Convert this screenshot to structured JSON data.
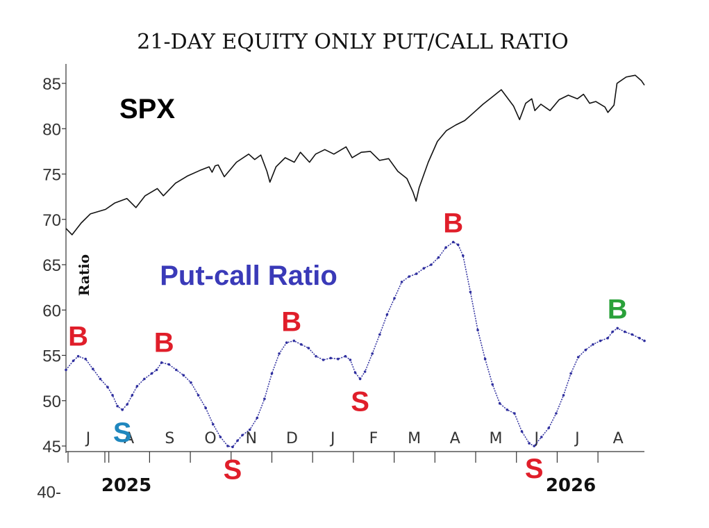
{
  "chart_data": {
    "type": "line",
    "title": "21-DAY EQUITY ONLY PUT/CALL RATIO",
    "ylabel": "Ratio",
    "y_ticks": [
      "85",
      "80",
      "75",
      "70",
      "65",
      "60",
      "55",
      "50",
      "45",
      "40-"
    ],
    "ylim": [
      40,
      87
    ],
    "years": [
      "2025",
      "2026"
    ],
    "months": [
      "J",
      "A",
      "S",
      "O",
      "N",
      "D",
      "J",
      "F",
      "M",
      "A",
      "M",
      "J",
      "J",
      "A"
    ],
    "colors": {
      "spx": "#111111",
      "ratio": "#2e2e9e",
      "red": "#e01e2a",
      "teal": "#1f87be",
      "green": "#2aa13a"
    },
    "series": [
      {
        "name": "SPX",
        "label_color": "#000000",
        "points": [
          [
            0,
            69.0
          ],
          [
            0.2,
            68.3
          ],
          [
            0.5,
            69.6
          ],
          [
            0.8,
            70.6
          ],
          [
            1.3,
            71.1
          ],
          [
            1.6,
            71.8
          ],
          [
            2.0,
            72.3
          ],
          [
            2.3,
            71.3
          ],
          [
            2.6,
            72.6
          ],
          [
            3.0,
            73.4
          ],
          [
            3.2,
            72.6
          ],
          [
            3.6,
            74.0
          ],
          [
            4.0,
            74.8
          ],
          [
            4.4,
            75.4
          ],
          [
            4.7,
            75.8
          ],
          [
            4.8,
            75.2
          ],
          [
            4.9,
            75.9
          ],
          [
            5.0,
            76.0
          ],
          [
            5.2,
            74.7
          ],
          [
            5.6,
            76.3
          ],
          [
            6.0,
            77.2
          ],
          [
            6.2,
            76.6
          ],
          [
            6.4,
            77.1
          ],
          [
            6.6,
            75.3
          ],
          [
            6.7,
            74.1
          ],
          [
            6.9,
            75.8
          ],
          [
            7.2,
            76.8
          ],
          [
            7.5,
            76.3
          ],
          [
            7.7,
            77.4
          ],
          [
            8.0,
            76.3
          ],
          [
            8.2,
            77.2
          ],
          [
            8.5,
            77.7
          ],
          [
            8.8,
            77.2
          ],
          [
            9.2,
            78.0
          ],
          [
            9.4,
            76.8
          ],
          [
            9.7,
            77.4
          ],
          [
            10.0,
            77.5
          ],
          [
            10.3,
            76.5
          ],
          [
            10.6,
            76.7
          ],
          [
            10.9,
            75.3
          ],
          [
            11.2,
            74.5
          ],
          [
            11.4,
            73.0
          ],
          [
            11.5,
            72.0
          ],
          [
            11.6,
            73.5
          ],
          [
            11.9,
            76.3
          ],
          [
            12.2,
            78.6
          ],
          [
            12.5,
            79.8
          ],
          [
            12.8,
            80.4
          ],
          [
            13.1,
            80.9
          ],
          [
            13.4,
            81.8
          ],
          [
            13.7,
            82.7
          ],
          [
            14.0,
            83.5
          ],
          [
            14.3,
            84.3
          ],
          [
            14.5,
            83.4
          ],
          [
            14.7,
            82.5
          ],
          [
            14.9,
            81.0
          ],
          [
            15.1,
            82.8
          ],
          [
            15.3,
            83.3
          ],
          [
            15.4,
            82.0
          ],
          [
            15.6,
            82.7
          ],
          [
            15.9,
            82.0
          ],
          [
            16.2,
            83.2
          ],
          [
            16.5,
            83.7
          ],
          [
            16.8,
            83.3
          ],
          [
            17.0,
            83.8
          ],
          [
            17.2,
            82.8
          ],
          [
            17.4,
            83.0
          ],
          [
            17.7,
            82.4
          ],
          [
            17.8,
            81.8
          ],
          [
            18.0,
            82.6
          ],
          [
            18.1,
            85.0
          ],
          [
            18.4,
            85.7
          ],
          [
            18.7,
            85.9
          ],
          [
            18.9,
            85.3
          ],
          [
            19.0,
            84.8
          ]
        ]
      },
      {
        "name": "Put-call Ratio",
        "label_color": "#3a3ab8",
        "points": [
          [
            0,
            53.4
          ],
          [
            0.3,
            54.4
          ],
          [
            0.5,
            54.9
          ],
          [
            0.8,
            54.6
          ],
          [
            1.1,
            53.5
          ],
          [
            1.4,
            52.4
          ],
          [
            1.7,
            51.5
          ],
          [
            1.9,
            50.6
          ],
          [
            2.1,
            49.4
          ],
          [
            2.3,
            49.0
          ],
          [
            2.5,
            49.6
          ],
          [
            2.7,
            50.6
          ],
          [
            2.9,
            51.6
          ],
          [
            3.2,
            52.4
          ],
          [
            3.5,
            53.0
          ],
          [
            3.7,
            53.4
          ],
          [
            3.9,
            54.2
          ],
          [
            4.2,
            54.0
          ],
          [
            4.5,
            53.4
          ],
          [
            4.8,
            52.8
          ],
          [
            5.1,
            52.0
          ],
          [
            5.4,
            50.6
          ],
          [
            5.7,
            49.2
          ],
          [
            6.0,
            47.4
          ],
          [
            6.3,
            46.0
          ],
          [
            6.6,
            45.0
          ],
          [
            6.8,
            44.9
          ],
          [
            7.0,
            45.6
          ],
          [
            7.2,
            46.2
          ],
          [
            7.5,
            46.8
          ],
          [
            7.8,
            48.1
          ],
          [
            8.1,
            50.2
          ],
          [
            8.4,
            53.0
          ],
          [
            8.7,
            55.2
          ],
          [
            9.0,
            56.4
          ],
          [
            9.3,
            56.6
          ],
          [
            9.6,
            56.2
          ],
          [
            9.9,
            55.8
          ],
          [
            10.2,
            54.9
          ],
          [
            10.5,
            54.5
          ],
          [
            10.8,
            54.7
          ],
          [
            11.1,
            54.6
          ],
          [
            11.4,
            54.9
          ],
          [
            11.6,
            54.5
          ],
          [
            11.8,
            53.1
          ],
          [
            12.0,
            52.4
          ],
          [
            12.2,
            53.2
          ],
          [
            12.5,
            55.2
          ],
          [
            12.8,
            57.3
          ],
          [
            13.1,
            59.5
          ],
          [
            13.4,
            61.3
          ],
          [
            13.7,
            63.1
          ],
          [
            14.0,
            63.7
          ],
          [
            14.3,
            64.0
          ],
          [
            14.6,
            64.6
          ],
          [
            14.9,
            65.0
          ],
          [
            15.2,
            65.8
          ],
          [
            15.5,
            66.9
          ],
          [
            15.8,
            67.5
          ],
          [
            16.0,
            67.2
          ],
          [
            16.2,
            66.0
          ],
          [
            16.5,
            62.0
          ],
          [
            16.8,
            57.8
          ],
          [
            17.1,
            54.6
          ],
          [
            17.4,
            51.8
          ],
          [
            17.7,
            49.7
          ],
          [
            18.0,
            49.0
          ],
          [
            18.3,
            48.6
          ],
          [
            18.6,
            46.6
          ],
          [
            18.9,
            45.3
          ],
          [
            19.1,
            45.0
          ],
          [
            19.4,
            46.0
          ],
          [
            19.7,
            47.0
          ],
          [
            20.0,
            48.6
          ],
          [
            20.3,
            50.6
          ],
          [
            20.6,
            53.0
          ],
          [
            20.9,
            54.8
          ],
          [
            21.2,
            55.6
          ],
          [
            21.5,
            56.2
          ],
          [
            21.8,
            56.6
          ],
          [
            22.1,
            56.9
          ],
          [
            22.3,
            57.6
          ],
          [
            22.5,
            58.0
          ],
          [
            22.8,
            57.6
          ],
          [
            23.1,
            57.3
          ],
          [
            23.4,
            56.9
          ],
          [
            23.6,
            56.6
          ]
        ]
      }
    ],
    "annotations": [
      {
        "text": "B",
        "x": 0.5,
        "y": 55.0,
        "color": "#e01e2a"
      },
      {
        "text": "S",
        "x": 2.3,
        "y": 49.0,
        "color": "#1f87be"
      },
      {
        "text": "B",
        "x": 4.0,
        "y": 54.3,
        "color": "#e01e2a"
      },
      {
        "text": "S",
        "x": 6.8,
        "y": 44.9,
        "color": "#e01e2a"
      },
      {
        "text": "B",
        "x": 9.2,
        "y": 56.6,
        "color": "#e01e2a"
      },
      {
        "text": "S",
        "x": 12.0,
        "y": 52.4,
        "color": "#e01e2a"
      },
      {
        "text": "B",
        "x": 15.8,
        "y": 67.5,
        "color": "#e01e2a"
      },
      {
        "text": "S",
        "x": 19.1,
        "y": 45.0,
        "color": "#e01e2a"
      },
      {
        "text": "B",
        "x": 22.5,
        "y": 58.0,
        "color": "#2aa13a"
      }
    ]
  }
}
